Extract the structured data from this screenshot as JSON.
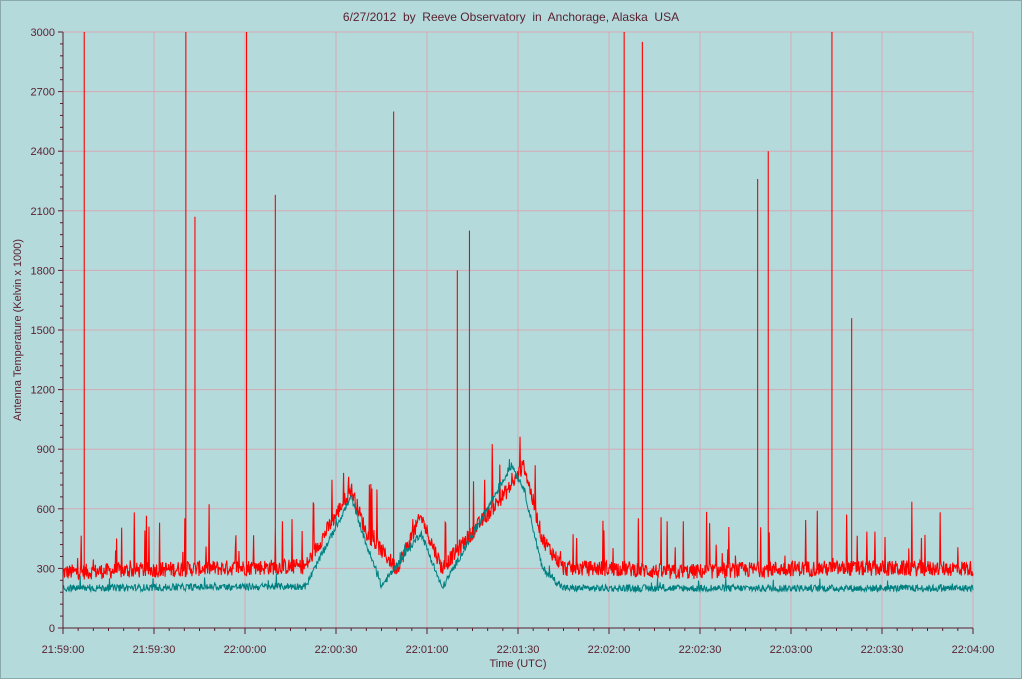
{
  "chart_data": {
    "type": "line",
    "title": "6/27/2012  by  Reeve Observatory  in  Anchorage, Alaska  USA",
    "xlabel": "Time (UTC)",
    "ylabel": "Antenna Temperature (Kelvin x 1000)",
    "x_range": [
      "21:59:00",
      "22:04:00"
    ],
    "ylim": [
      0,
      3000
    ],
    "y_ticks": [
      0,
      300,
      600,
      900,
      1200,
      1500,
      1800,
      2100,
      2400,
      2700,
      3000
    ],
    "x_ticks": [
      "21:59:00",
      "21:59:30",
      "22:00:00",
      "22:00:30",
      "22:01:00",
      "22:01:30",
      "22:02:00",
      "22:02:30",
      "22:03:00",
      "22:03:30",
      "22:04:00"
    ],
    "grid": true,
    "series": [
      {
        "color": "#ff0000",
        "x_unit": "seconds after 21:59:00",
        "baseline": [
          [
            0,
            280
          ],
          [
            45,
            300
          ],
          [
            80,
            310
          ],
          [
            95,
            700
          ],
          [
            100,
            480
          ],
          [
            110,
            300
          ],
          [
            118,
            560
          ],
          [
            125,
            300
          ],
          [
            148,
            720
          ],
          [
            152,
            820
          ],
          [
            158,
            450
          ],
          [
            165,
            300
          ],
          [
            185,
            300
          ],
          [
            200,
            280
          ],
          [
            240,
            300
          ],
          [
            300,
            300
          ]
        ],
        "spikes": [
          [
            7,
            3000
          ],
          [
            40.5,
            3000
          ],
          [
            43.5,
            2070
          ],
          [
            60.5,
            3000
          ],
          [
            70,
            2180
          ],
          [
            109,
            2600
          ],
          [
            130,
            1800
          ],
          [
            134,
            2000
          ],
          [
            185,
            3000
          ],
          [
            191,
            2950
          ],
          [
            229,
            2260
          ],
          [
            232.5,
            2400
          ],
          [
            253.5,
            3000
          ],
          [
            260,
            1560
          ]
        ]
      },
      {
        "color": "#008080",
        "x_unit": "seconds after 21:59:00",
        "baseline": [
          [
            0,
            200
          ],
          [
            80,
            210
          ],
          [
            95,
            660
          ],
          [
            100,
            420
          ],
          [
            105,
            210
          ],
          [
            118,
            480
          ],
          [
            125,
            200
          ],
          [
            148,
            820
          ],
          [
            152,
            700
          ],
          [
            158,
            300
          ],
          [
            165,
            200
          ],
          [
            300,
            200
          ]
        ],
        "spikes": [
          [
            134,
            1800
          ]
        ]
      }
    ]
  }
}
